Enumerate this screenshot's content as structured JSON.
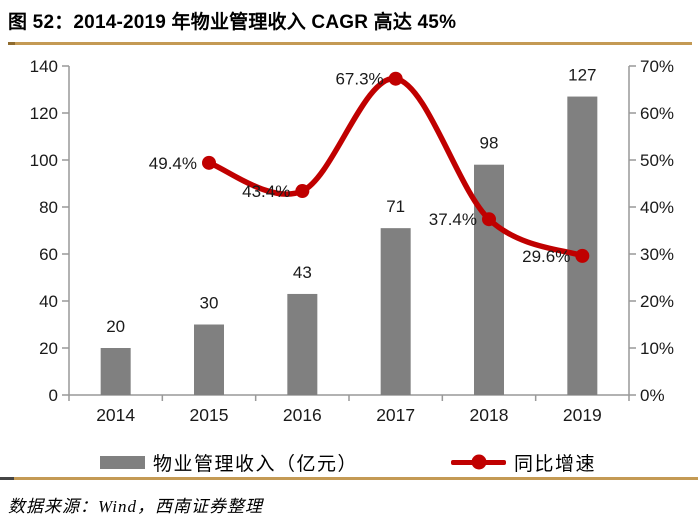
{
  "figure": {
    "title": "图 52：2014-2019 年物业管理收入 CAGR 高达 45%"
  },
  "legend": {
    "bar_label": "物业管理收入（亿元）",
    "line_label": "同比增速"
  },
  "source": {
    "text": "数据来源：Wind，西南证券整理"
  },
  "colors": {
    "bar": "#808080",
    "line": "#C00000",
    "axis": "#999999",
    "label_text": "#1a1a1a",
    "rule": "#C49A54",
    "rule_cap_top": "#8f6b2e",
    "rule_cap_dark": "#454545"
  },
  "chart_data": {
    "type": "bar+line combo",
    "title": "2014-2019 年物业管理收入 CAGR 高达 45%",
    "categories": [
      "2014",
      "2015",
      "2016",
      "2017",
      "2018",
      "2019"
    ],
    "series": [
      {
        "name": "物业管理收入（亿元）",
        "type": "bar",
        "axis": "left",
        "values": [
          20,
          30,
          43,
          71,
          98,
          127
        ],
        "labels": [
          "20",
          "30",
          "43",
          "71",
          "98",
          "127"
        ]
      },
      {
        "name": "同比增速",
        "type": "line",
        "axis": "right",
        "values": [
          null,
          49.4,
          43.4,
          67.3,
          37.4,
          29.6
        ],
        "labels": [
          "",
          "49.4%",
          "43.4%",
          "67.3%",
          "37.4%",
          "29.6%"
        ]
      }
    ],
    "left_axis": {
      "min": 0,
      "max": 140,
      "tick_values": [
        0,
        20,
        40,
        60,
        80,
        100,
        120,
        140
      ],
      "tick_labels": [
        "0",
        "20",
        "40",
        "60",
        "80",
        "100",
        "120",
        "140"
      ]
    },
    "right_axis": {
      "min": 0,
      "max": 70,
      "tick_values": [
        0,
        10,
        20,
        30,
        40,
        50,
        60,
        70
      ],
      "tick_labels": [
        "0%",
        "10%",
        "20%",
        "30%",
        "40%",
        "50%",
        "60%",
        "70%"
      ]
    },
    "grid": false,
    "legend_position": "bottom"
  }
}
